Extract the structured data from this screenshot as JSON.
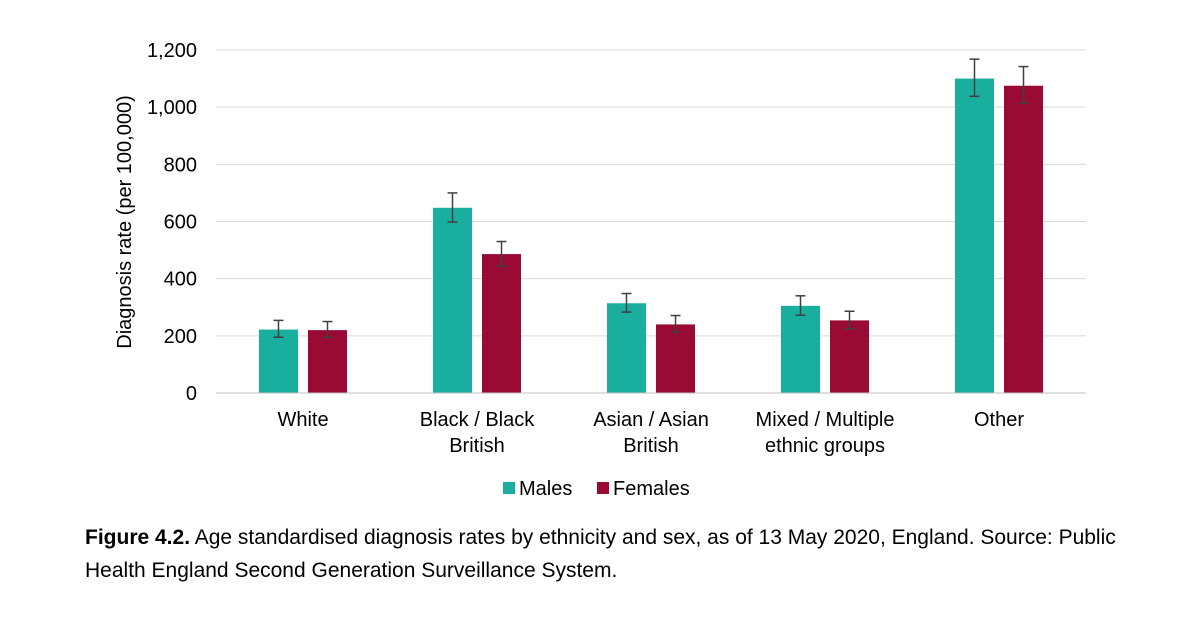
{
  "chart_data": {
    "type": "bar",
    "categories": [
      [
        "White"
      ],
      [
        "Black / Black",
        "British"
      ],
      [
        "Asian / Asian",
        "British"
      ],
      [
        "Mixed / Multiple",
        "ethnic groups"
      ],
      [
        "Other"
      ]
    ],
    "series": [
      {
        "name": "Males",
        "color": "#1aae9f",
        "values": [
          222,
          648,
          314,
          305,
          1100
        ],
        "error_low": [
          195,
          598,
          283,
          272,
          1038
        ],
        "error_high": [
          254,
          700,
          348,
          340,
          1168
        ]
      },
      {
        "name": "Females",
        "color": "#990a35",
        "values": [
          220,
          486,
          240,
          254,
          1075
        ],
        "error_low": [
          194,
          444,
          213,
          225,
          1013
        ],
        "error_high": [
          250,
          530,
          271,
          286,
          1142
        ]
      }
    ],
    "ylabel": "Diagnosis rate (per 100,000)",
    "ylim": [
      0,
      1200
    ],
    "yticks": [
      0,
      200,
      400,
      600,
      800,
      1000,
      1200
    ],
    "ytick_labels": [
      "0",
      "200",
      "400",
      "600",
      "800",
      "1,000",
      "1,200"
    ],
    "grid": true,
    "legend": "bottom-center",
    "error_bar_color": "#404040"
  },
  "caption": {
    "label": "Figure 4.2.",
    "text": " Age standardised diagnosis rates by ethnicity and sex, as of 13 May 2020, England. Source: Public Health England Second Generation Surveillance System."
  }
}
